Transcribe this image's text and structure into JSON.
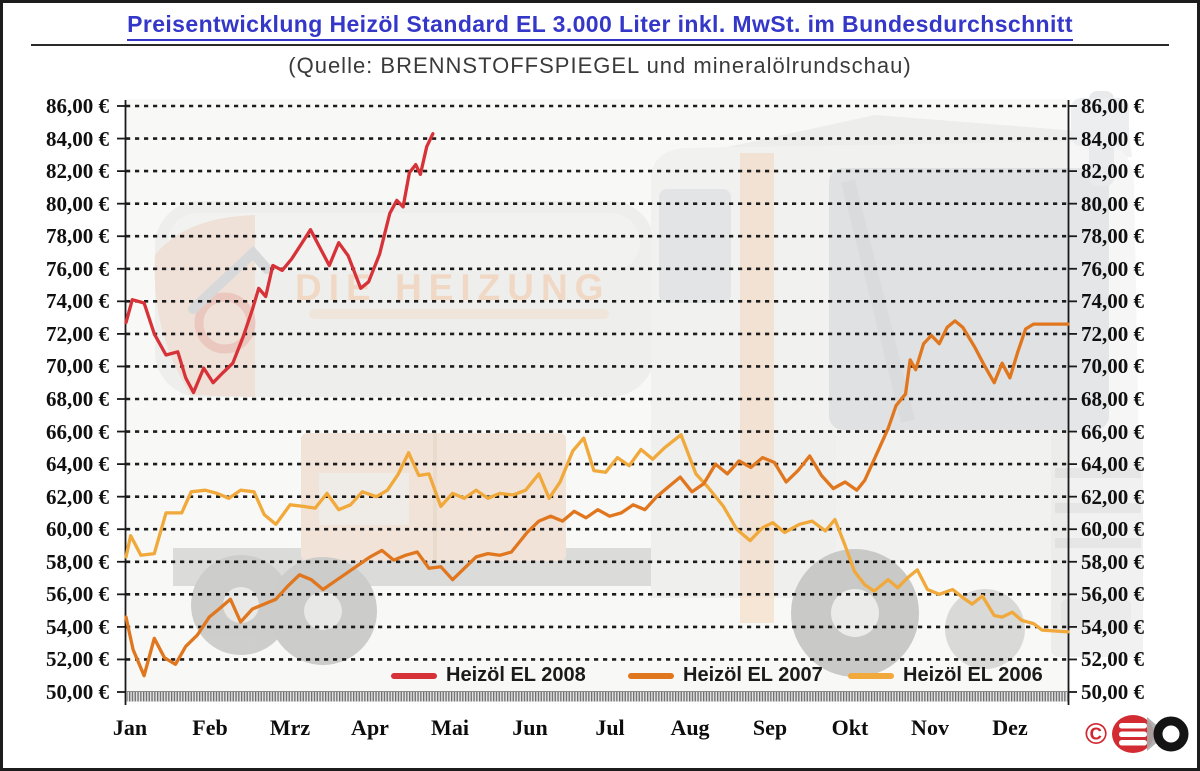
{
  "header": {
    "title": "Preisentwicklung Heizöl Standard EL 3.000 Liter inkl. MwSt. im Bundesdurchschnitt",
    "subtitle": "(Quelle: BRENNSTOFFSPIEGEL und mineralölrundschau)"
  },
  "watermark": {
    "brand": "DIE HEIZUNG"
  },
  "logo": {
    "copyright_symbol": "©"
  },
  "colors": {
    "title_blue": "#3437c8",
    "series_2008_red": "#d73238",
    "series_2007_orange": "#e0761e",
    "series_2006_amber": "#f0a93a",
    "grid_black": "#1d1d1d"
  },
  "chart_data": {
    "type": "line",
    "title": "Preisentwicklung Heizöl Standard EL 3.000 Liter inkl. MwSt. im Bundesdurchschnitt",
    "source": "(Quelle: BRENNSTOFFSPIEGEL und mineralölrundschau)",
    "grid": "dashed-horizontal",
    "legend_position": "bottom-inside",
    "x_axis": {
      "unit": "month_fraction_0_to_12",
      "categories": [
        "Jan",
        "Feb",
        "Mrz",
        "Apr",
        "Mai",
        "Jun",
        "Jul",
        "Aug",
        "Sep",
        "Okt",
        "Nov",
        "Dez"
      ],
      "range": [
        0,
        12
      ]
    },
    "y_axis": {
      "min": 50,
      "max": 86,
      "step": 2,
      "currency": "EUR",
      "sides": "both",
      "tick_values": [
        86,
        84,
        82,
        80,
        78,
        76,
        74,
        72,
        70,
        68,
        66,
        64,
        62,
        60,
        58,
        56,
        54,
        52,
        50
      ],
      "tick_labels": [
        "86,00 €",
        "84,00 €",
        "82,00 €",
        "80,00 €",
        "78,00 €",
        "76,00 €",
        "74,00 €",
        "72,00 €",
        "70,00 €",
        "68,00 €",
        "66,00 €",
        "64,00 €",
        "62,00 €",
        "60,00 €",
        "58,00 €",
        "56,00 €",
        "54,00 €",
        "52,00 €",
        "50,00 €"
      ]
    },
    "series": [
      {
        "name": "Heizöl EL 2006",
        "color": "#f0a93a",
        "points": [
          [
            0.0,
            58.3
          ],
          [
            0.06,
            59.6
          ],
          [
            0.19,
            58.4
          ],
          [
            0.36,
            58.5
          ],
          [
            0.51,
            61.0
          ],
          [
            0.71,
            61.0
          ],
          [
            0.83,
            62.3
          ],
          [
            1.01,
            62.4
          ],
          [
            1.16,
            62.2
          ],
          [
            1.31,
            61.9
          ],
          [
            1.46,
            62.4
          ],
          [
            1.63,
            62.3
          ],
          [
            1.76,
            60.9
          ],
          [
            1.91,
            60.3
          ],
          [
            2.09,
            61.5
          ],
          [
            2.26,
            61.4
          ],
          [
            2.41,
            61.3
          ],
          [
            2.56,
            62.2
          ],
          [
            2.71,
            61.2
          ],
          [
            2.86,
            61.5
          ],
          [
            3.01,
            62.3
          ],
          [
            3.19,
            62.0
          ],
          [
            3.33,
            62.4
          ],
          [
            3.47,
            63.4
          ],
          [
            3.6,
            64.7
          ],
          [
            3.73,
            63.3
          ],
          [
            3.86,
            63.4
          ],
          [
            4.01,
            61.4
          ],
          [
            4.16,
            62.2
          ],
          [
            4.31,
            61.9
          ],
          [
            4.46,
            62.4
          ],
          [
            4.61,
            61.9
          ],
          [
            4.76,
            62.2
          ],
          [
            4.93,
            62.1
          ],
          [
            5.09,
            62.4
          ],
          [
            5.26,
            63.4
          ],
          [
            5.39,
            61.9
          ],
          [
            5.53,
            62.9
          ],
          [
            5.69,
            64.8
          ],
          [
            5.83,
            65.6
          ],
          [
            5.96,
            63.6
          ],
          [
            6.11,
            63.5
          ],
          [
            6.26,
            64.4
          ],
          [
            6.41,
            63.9
          ],
          [
            6.56,
            64.9
          ],
          [
            6.71,
            64.3
          ],
          [
            6.86,
            65.0
          ],
          [
            7.07,
            65.8
          ],
          [
            7.26,
            63.4
          ],
          [
            7.41,
            62.6
          ],
          [
            7.61,
            61.4
          ],
          [
            7.78,
            60.0
          ],
          [
            7.95,
            59.3
          ],
          [
            8.11,
            60.1
          ],
          [
            8.24,
            60.4
          ],
          [
            8.39,
            59.8
          ],
          [
            8.58,
            60.3
          ],
          [
            8.74,
            60.5
          ],
          [
            8.91,
            59.9
          ],
          [
            9.03,
            60.6
          ],
          [
            9.16,
            59.0
          ],
          [
            9.28,
            57.4
          ],
          [
            9.41,
            56.6
          ],
          [
            9.53,
            56.2
          ],
          [
            9.71,
            56.9
          ],
          [
            9.83,
            56.4
          ],
          [
            9.95,
            57.0
          ],
          [
            10.08,
            57.5
          ],
          [
            10.21,
            56.3
          ],
          [
            10.36,
            56.0
          ],
          [
            10.53,
            56.3
          ],
          [
            10.66,
            55.8
          ],
          [
            10.78,
            55.4
          ],
          [
            10.91,
            55.9
          ],
          [
            11.06,
            54.7
          ],
          [
            11.16,
            54.6
          ],
          [
            11.29,
            54.9
          ],
          [
            11.41,
            54.4
          ],
          [
            11.56,
            54.2
          ],
          [
            11.67,
            53.8
          ],
          [
            12.0,
            53.7
          ]
        ]
      },
      {
        "name": "Heizöl EL 2007",
        "color": "#e0761e",
        "points": [
          [
            0.0,
            54.6
          ],
          [
            0.09,
            52.6
          ],
          [
            0.23,
            51.0
          ],
          [
            0.36,
            53.3
          ],
          [
            0.49,
            52.1
          ],
          [
            0.63,
            51.7
          ],
          [
            0.76,
            52.8
          ],
          [
            0.91,
            53.5
          ],
          [
            1.06,
            54.6
          ],
          [
            1.21,
            55.2
          ],
          [
            1.33,
            55.7
          ],
          [
            1.46,
            54.3
          ],
          [
            1.61,
            55.1
          ],
          [
            1.76,
            55.4
          ],
          [
            1.91,
            55.7
          ],
          [
            2.06,
            56.5
          ],
          [
            2.21,
            57.2
          ],
          [
            2.36,
            56.9
          ],
          [
            2.51,
            56.3
          ],
          [
            2.66,
            56.8
          ],
          [
            2.81,
            57.3
          ],
          [
            2.96,
            57.8
          ],
          [
            3.11,
            58.3
          ],
          [
            3.26,
            58.7
          ],
          [
            3.41,
            58.1
          ],
          [
            3.56,
            58.4
          ],
          [
            3.71,
            58.6
          ],
          [
            3.86,
            57.6
          ],
          [
            4.01,
            57.7
          ],
          [
            4.16,
            56.9
          ],
          [
            4.31,
            57.6
          ],
          [
            4.46,
            58.3
          ],
          [
            4.61,
            58.5
          ],
          [
            4.76,
            58.4
          ],
          [
            4.91,
            58.6
          ],
          [
            5.11,
            59.8
          ],
          [
            5.26,
            60.5
          ],
          [
            5.41,
            60.8
          ],
          [
            5.56,
            60.5
          ],
          [
            5.71,
            61.1
          ],
          [
            5.86,
            60.7
          ],
          [
            6.01,
            61.2
          ],
          [
            6.16,
            60.8
          ],
          [
            6.31,
            61.0
          ],
          [
            6.46,
            61.5
          ],
          [
            6.61,
            61.2
          ],
          [
            6.76,
            62.0
          ],
          [
            6.91,
            62.6
          ],
          [
            7.06,
            63.2
          ],
          [
            7.21,
            62.3
          ],
          [
            7.36,
            62.8
          ],
          [
            7.51,
            64.0
          ],
          [
            7.66,
            63.4
          ],
          [
            7.81,
            64.2
          ],
          [
            7.96,
            63.8
          ],
          [
            8.11,
            64.4
          ],
          [
            8.26,
            64.1
          ],
          [
            8.41,
            62.9
          ],
          [
            8.56,
            63.6
          ],
          [
            8.71,
            64.5
          ],
          [
            8.86,
            63.3
          ],
          [
            9.01,
            62.5
          ],
          [
            9.16,
            62.9
          ],
          [
            9.31,
            62.4
          ],
          [
            9.41,
            63.0
          ],
          [
            9.56,
            64.6
          ],
          [
            9.71,
            66.2
          ],
          [
            9.81,
            67.6
          ],
          [
            9.93,
            68.3
          ],
          [
            9.99,
            70.4
          ],
          [
            10.06,
            69.8
          ],
          [
            10.16,
            71.4
          ],
          [
            10.26,
            71.9
          ],
          [
            10.36,
            71.4
          ],
          [
            10.46,
            72.4
          ],
          [
            10.56,
            72.8
          ],
          [
            10.66,
            72.4
          ],
          [
            10.81,
            71.2
          ],
          [
            10.93,
            70.1
          ],
          [
            11.06,
            69.0
          ],
          [
            11.16,
            70.2
          ],
          [
            11.26,
            69.3
          ],
          [
            11.36,
            70.9
          ],
          [
            11.46,
            72.3
          ],
          [
            11.56,
            72.6
          ],
          [
            12.0,
            72.6
          ]
        ]
      },
      {
        "name": "Heizöl EL 2008",
        "color": "#d73238",
        "points": [
          [
            0.0,
            72.7
          ],
          [
            0.08,
            74.1
          ],
          [
            0.23,
            73.9
          ],
          [
            0.36,
            72.0
          ],
          [
            0.51,
            70.7
          ],
          [
            0.66,
            70.9
          ],
          [
            0.76,
            69.3
          ],
          [
            0.86,
            68.4
          ],
          [
            0.99,
            69.9
          ],
          [
            1.11,
            69.0
          ],
          [
            1.23,
            69.6
          ],
          [
            1.36,
            70.2
          ],
          [
            1.49,
            71.8
          ],
          [
            1.61,
            73.5
          ],
          [
            1.69,
            74.8
          ],
          [
            1.78,
            74.3
          ],
          [
            1.87,
            76.2
          ],
          [
            1.99,
            75.9
          ],
          [
            2.11,
            76.6
          ],
          [
            2.23,
            77.5
          ],
          [
            2.35,
            78.4
          ],
          [
            2.47,
            77.3
          ],
          [
            2.59,
            76.2
          ],
          [
            2.71,
            77.6
          ],
          [
            2.83,
            76.8
          ],
          [
            2.91,
            75.8
          ],
          [
            2.99,
            74.8
          ],
          [
            3.09,
            75.2
          ],
          [
            3.23,
            76.9
          ],
          [
            3.36,
            79.4
          ],
          [
            3.45,
            80.2
          ],
          [
            3.53,
            79.8
          ],
          [
            3.61,
            81.9
          ],
          [
            3.69,
            82.4
          ],
          [
            3.75,
            81.8
          ],
          [
            3.83,
            83.5
          ],
          [
            3.91,
            84.3
          ]
        ]
      }
    ],
    "legend_order": [
      "Heizöl EL 2008",
      "Heizöl EL 2007",
      "Heizöl EL 2006"
    ]
  }
}
